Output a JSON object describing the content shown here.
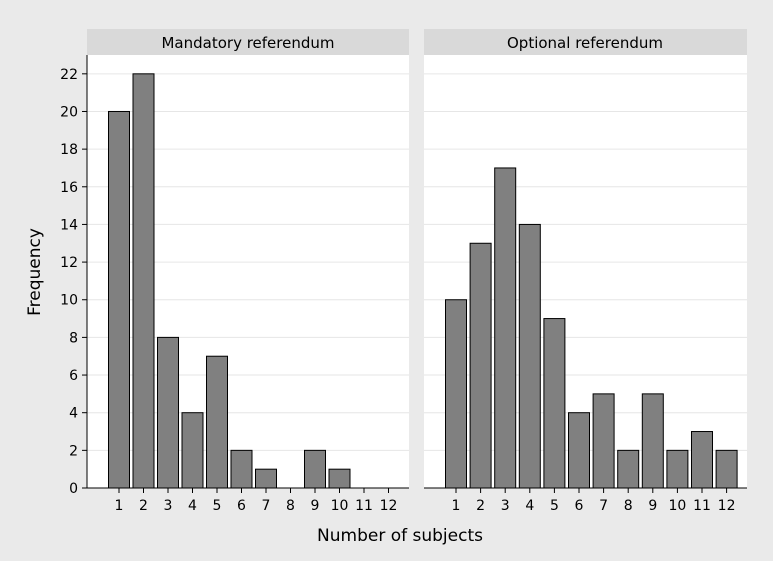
{
  "chart_data": {
    "type": "bar",
    "xlabel": "Number of subjects",
    "ylabel": "Frequency",
    "ylim": [
      0,
      23
    ],
    "yticks": [
      0,
      2,
      4,
      6,
      8,
      10,
      12,
      14,
      16,
      18,
      20,
      22
    ],
    "categories": [
      "1",
      "2",
      "3",
      "4",
      "5",
      "6",
      "7",
      "8",
      "9",
      "10",
      "11",
      "12"
    ],
    "grid": true,
    "panels": [
      {
        "title": "Mandatory referendum",
        "values": [
          20,
          22,
          8,
          4,
          7,
          2,
          1,
          0,
          2,
          1,
          0,
          0
        ]
      },
      {
        "title": "Optional referendum",
        "values": [
          10,
          13,
          17,
          14,
          9,
          4,
          5,
          2,
          5,
          2,
          3,
          2
        ]
      }
    ],
    "colors": {
      "background": "#eaeaea",
      "plot": "#ffffff",
      "header": "#d9d9d9",
      "bar": "#808080",
      "bar_edge": "#000000",
      "grid": "#e6e6e6"
    }
  }
}
